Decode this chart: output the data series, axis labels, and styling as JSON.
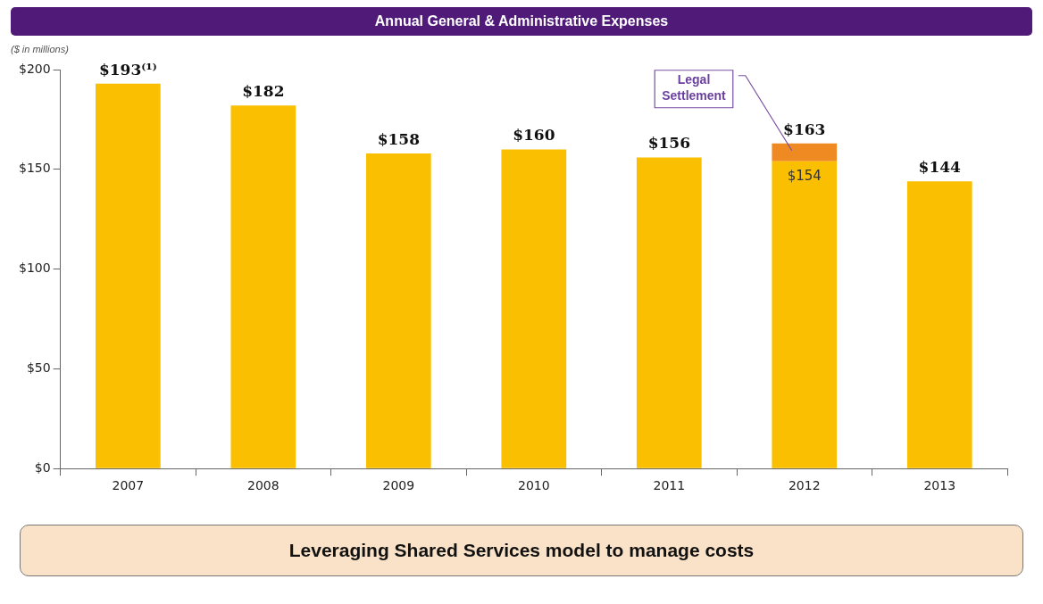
{
  "chart_data": {
    "type": "bar",
    "title": "Annual General & Administrative Expenses",
    "ylabel": "($ in millions)",
    "categories": [
      "2007",
      "2008",
      "2009",
      "2010",
      "2011",
      "2012",
      "2013"
    ],
    "stacked": true,
    "series": [
      {
        "color": "#f9bf00",
        "values": [
          193,
          182,
          158,
          160,
          156,
          154,
          144
        ],
        "value_labels": [
          null,
          null,
          null,
          null,
          null,
          "$154",
          null
        ]
      },
      {
        "name": "Legal Settlement",
        "color": "#ef8a23",
        "values": [
          null,
          null,
          null,
          null,
          null,
          9,
          null
        ]
      }
    ],
    "totals": [
      "$193⁽¹⁾",
      "$182",
      "$158",
      "$160",
      "$156",
      "$163",
      "$144"
    ],
    "ylim": [
      0,
      200
    ],
    "yticks": [
      {
        "value": 0,
        "label": "$0"
      },
      {
        "value": 50,
        "label": "$50"
      },
      {
        "value": 100,
        "label": "$100"
      },
      {
        "value": 150,
        "label": "$150"
      },
      {
        "value": 200,
        "label": "$200"
      }
    ],
    "grid": false,
    "legend": false,
    "annotations": [
      "Leveraging Shared Services model to manage costs"
    ]
  }
}
